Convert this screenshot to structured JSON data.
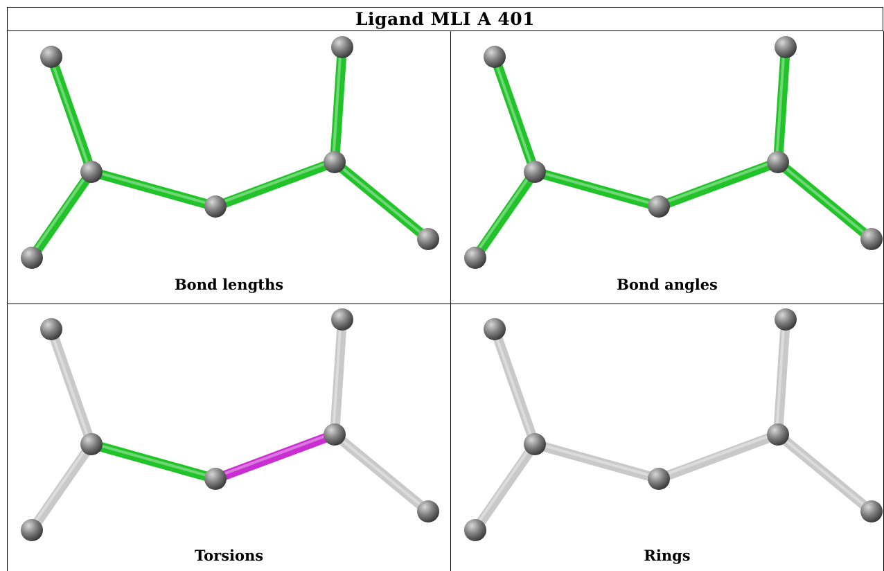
{
  "title": "Ligand MLI A 401",
  "colors": {
    "atom": "#7d7d7d",
    "highlight_green": "#22c22a",
    "highlight_magenta": "#c92fd0",
    "neutral_bond": "#c9c9c9"
  },
  "panels": [
    {
      "caption": "Bond lengths",
      "bonds": [
        "green",
        "green",
        "green",
        "green",
        "green",
        "green"
      ]
    },
    {
      "caption": "Bond angles",
      "bonds": [
        "green",
        "green",
        "green",
        "green",
        "green",
        "green"
      ]
    },
    {
      "caption": "Torsions",
      "bonds": [
        "gray",
        "gray",
        "green",
        "magenta",
        "gray",
        "gray"
      ]
    },
    {
      "caption": "Rings",
      "bonds": [
        "gray",
        "gray",
        "gray",
        "gray",
        "gray",
        "gray"
      ]
    }
  ]
}
